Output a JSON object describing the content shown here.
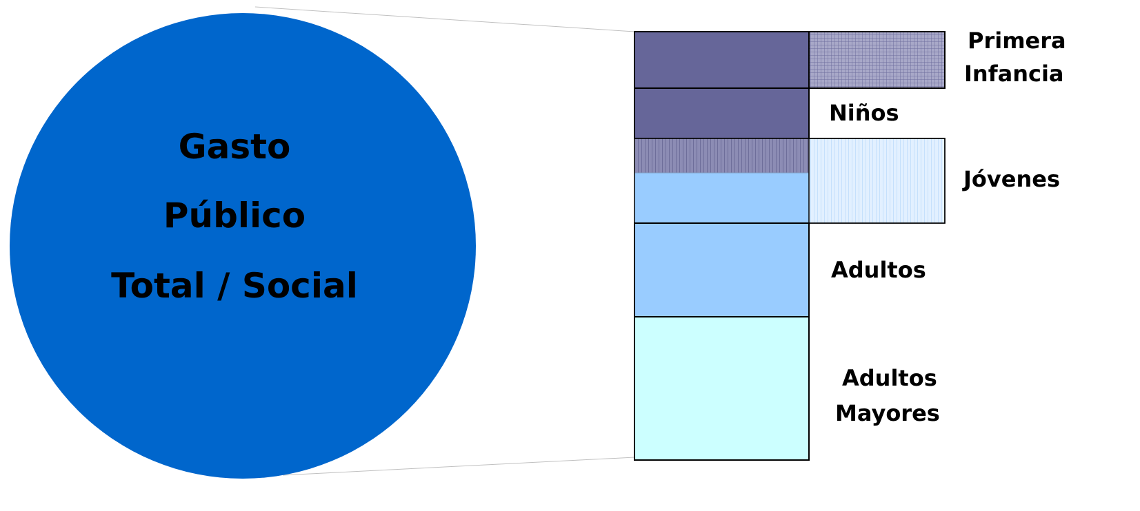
{
  "circle": {
    "lines": [
      "Gasto",
      "Público",
      "Total / Social"
    ],
    "color": "#0066CC"
  },
  "colors": {
    "dark": "#666699",
    "medium": "#99CCFF",
    "light": "#CCFFFF",
    "hatch_dark": "#8A8AB8",
    "hatch_light": "#B8DCFF"
  },
  "segments": [
    {
      "key": "primera_infancia",
      "label_lines": [
        "Primera",
        "Infancia"
      ]
    },
    {
      "key": "ninos",
      "label_lines": [
        "Niños"
      ]
    },
    {
      "key": "jovenes",
      "label_lines": [
        "Jóvenes"
      ]
    },
    {
      "key": "adultos",
      "label_lines": [
        "Adultos"
      ]
    },
    {
      "key": "adultos_mayores",
      "label_lines": [
        "Adultos",
        "Mayores"
      ]
    }
  ]
}
